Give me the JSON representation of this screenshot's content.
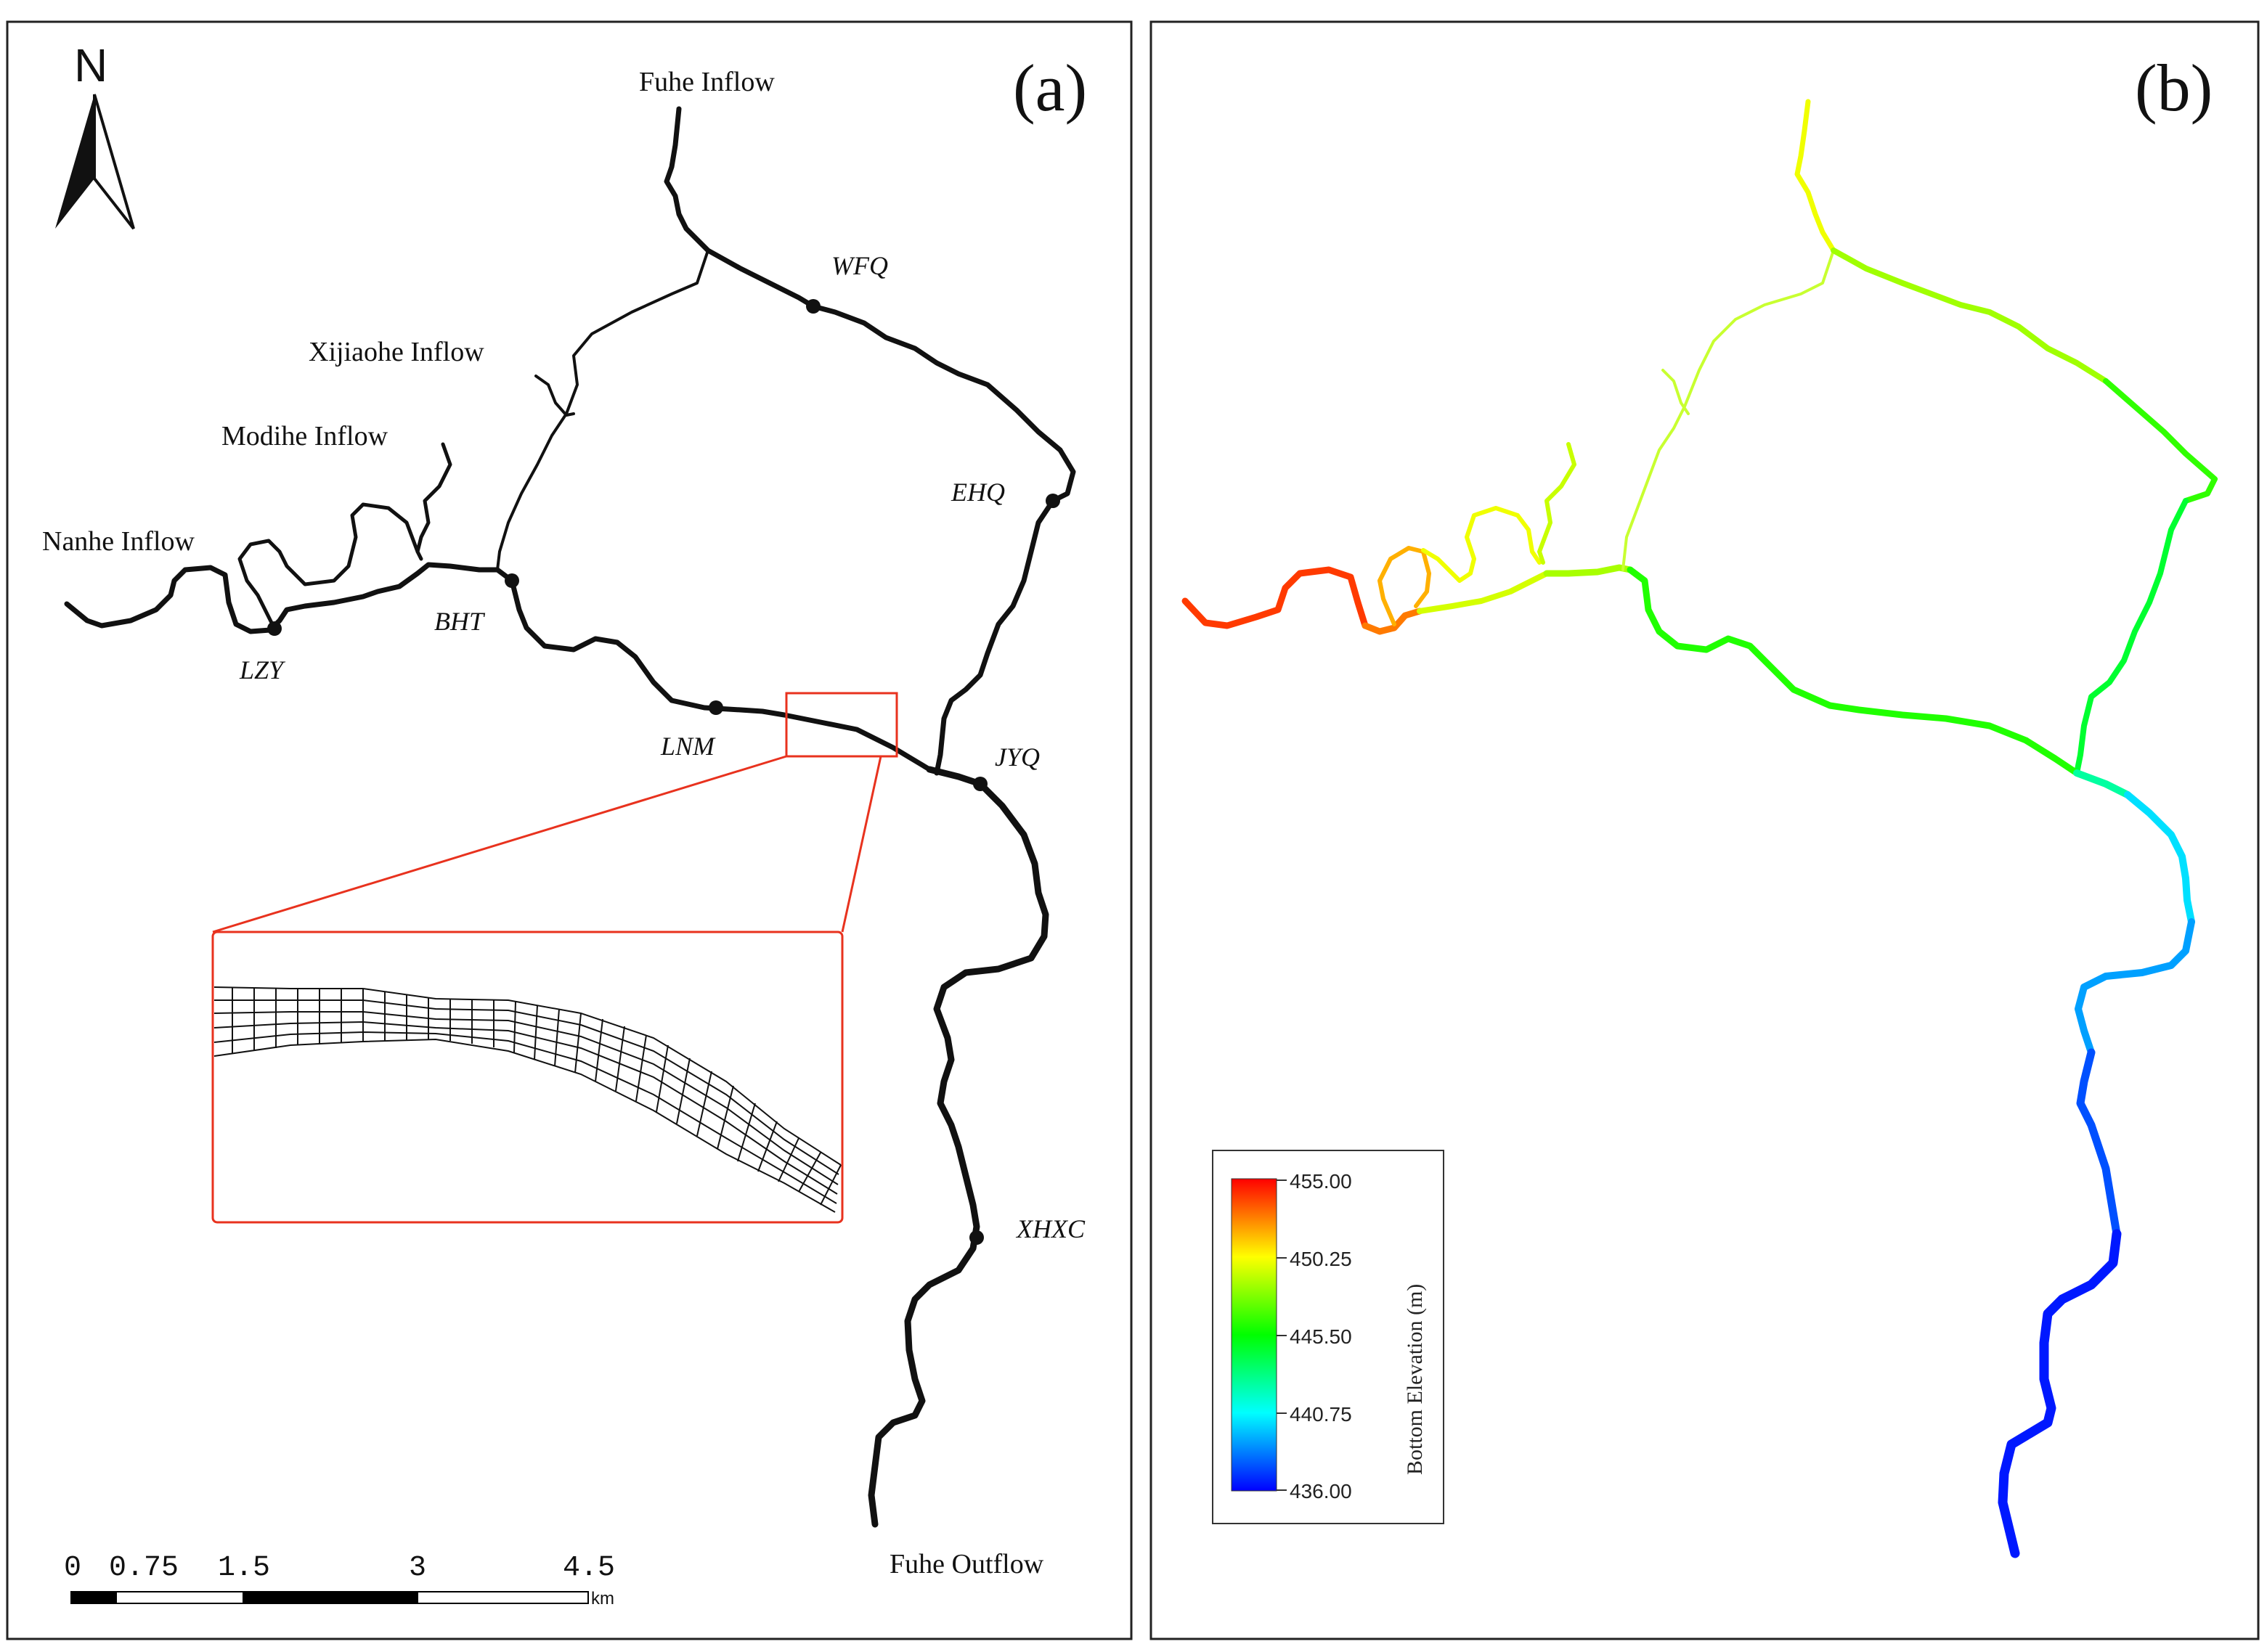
{
  "panel_a": {
    "tag": "(a)",
    "north_label": "N",
    "inflows": {
      "fuhe": "Fuhe Inflow",
      "xijiaohe": "Xijiaohe Inflow",
      "modihe": "Modihe Inflow",
      "nanhe": "Nanhe Inflow"
    },
    "outflow": "Fuhe Outflow",
    "stations": {
      "wfq": "WFQ",
      "ehq": "EHQ",
      "bht": "BHT",
      "lzy": "LZY",
      "lnm": "LNM",
      "jyq": "JYQ",
      "xhxc": "XHXC"
    },
    "scale_bar": {
      "ticks": [
        "0",
        "0.75",
        "1.5",
        "3",
        "4.5"
      ],
      "unit": "km"
    },
    "colors": {
      "inset_frame": "#e8321e",
      "river": "#111111"
    }
  },
  "panel_b": {
    "tag": "(b)",
    "colorbar": {
      "title": "Bottom Elevation (m)",
      "ticks": [
        "455.00",
        "450.25",
        "445.50",
        "440.75",
        "436.00"
      ],
      "min": 436.0,
      "max": 455.0,
      "colormap": [
        "#ff0000",
        "#ffff00",
        "#00ff00",
        "#00ffff",
        "#0000ff"
      ]
    }
  }
}
